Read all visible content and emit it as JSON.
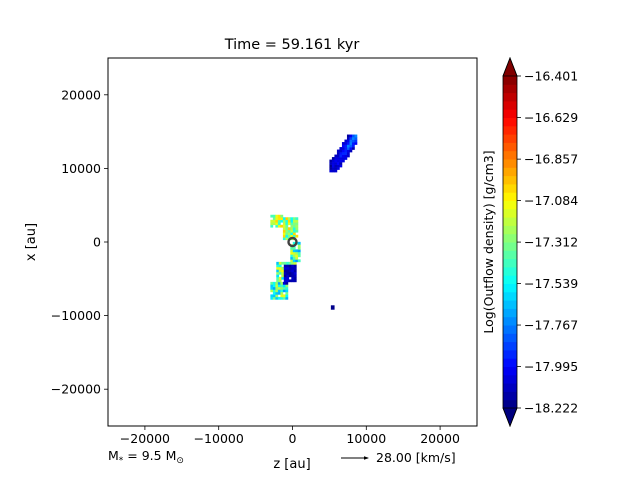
{
  "chart_data": {
    "type": "heatmap",
    "title": "Time = 59.161 kyr",
    "xlabel": "z [au]",
    "ylabel": "x [au]",
    "xlim": [
      -25000,
      25000
    ],
    "ylim": [
      -25000,
      25000
    ],
    "xticks": [
      -20000,
      -10000,
      0,
      10000,
      20000
    ],
    "xtick_labels": [
      "−20000",
      "−10000",
      "0",
      "10000",
      "20000"
    ],
    "yticks": [
      -20000,
      -10000,
      0,
      10000,
      20000
    ],
    "ytick_labels": [
      "−20000",
      "−10000",
      "0",
      "10000",
      "20000"
    ],
    "grid": false,
    "colorbar": {
      "label": "Log(Outflow density) [g/cm3]",
      "min": -18.222,
      "max": -16.401,
      "ticks": [
        -16.401,
        -16.629,
        -16.857,
        -17.084,
        -17.312,
        -17.539,
        -17.767,
        -17.995,
        -18.222
      ],
      "tick_labels": [
        "−16.401",
        "−16.629",
        "−16.857",
        "−17.084",
        "−17.312",
        "−17.539",
        "−17.767",
        "−17.995",
        "−18.222"
      ],
      "colormap": "jet",
      "extend": "both"
    },
    "regions": [
      {
        "name": "upper-right-lobe",
        "z": [
          5000,
          8500
        ],
        "x": [
          9500,
          14500
        ],
        "log_density_range": [
          -18.2,
          -17.6
        ]
      },
      {
        "name": "upper-left-arm",
        "z": [
          -3000,
          500
        ],
        "x": [
          300,
          3500
        ],
        "log_density_range": [
          -17.6,
          -17.0
        ]
      },
      {
        "name": "lower-left-arm",
        "z": [
          -3000,
          1000
        ],
        "x": [
          -7800,
          -300
        ],
        "log_density_range": [
          -18.2,
          -17.1
        ]
      },
      {
        "name": "small-blob",
        "z": [
          5200,
          5700
        ],
        "x": [
          -9200,
          -8600
        ],
        "log_density_range": [
          -18.2,
          -18.0
        ]
      }
    ],
    "star_marker": {
      "z": 0,
      "x": 0
    }
  },
  "annotations": {
    "mass_label": "M$_*$ = 9.5 M$_\\odot$",
    "mass_main": "M",
    "mass_sub": "*",
    "mass_mid": " = 9.5 M",
    "mass_sub2": "⊙",
    "velocity_label": "28.00 [km/s]"
  }
}
